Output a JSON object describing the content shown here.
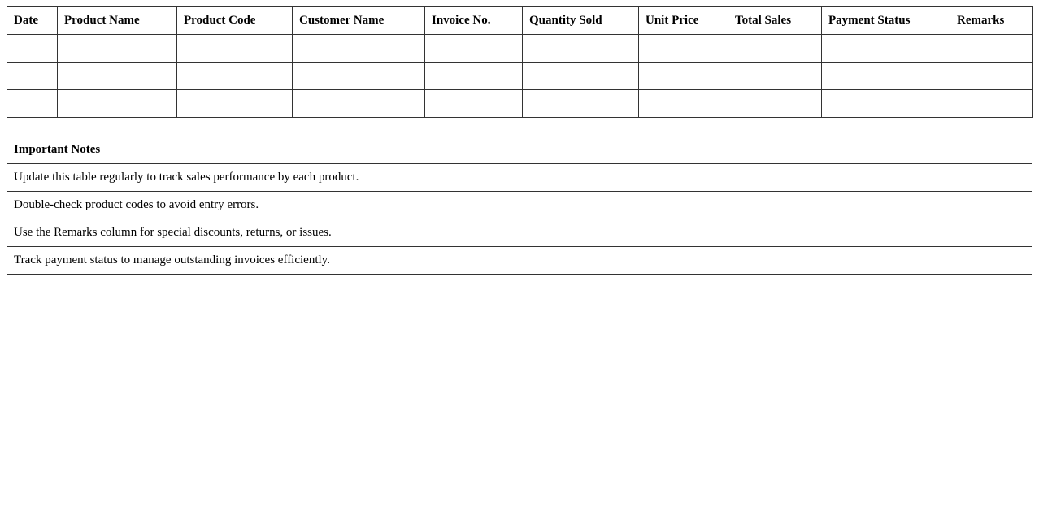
{
  "sales_table": {
    "headers": [
      "Date",
      "Product Name",
      "Product Code",
      "Customer Name",
      "Invoice No.",
      "Quantity Sold",
      "Unit Price",
      "Total Sales",
      "Payment Status",
      "Remarks"
    ],
    "rows": [
      [
        "",
        "",
        "",
        "",
        "",
        "",
        "",
        "",
        "",
        ""
      ],
      [
        "",
        "",
        "",
        "",
        "",
        "",
        "",
        "",
        "",
        ""
      ],
      [
        "",
        "",
        "",
        "",
        "",
        "",
        "",
        "",
        "",
        ""
      ]
    ]
  },
  "notes": {
    "title": "Important Notes",
    "items": [
      "Update this table regularly to track sales performance by each product.",
      "Double-check product codes to avoid entry errors.",
      "Use the Remarks column for special discounts, returns, or issues.",
      "Track payment status to manage outstanding invoices efficiently."
    ]
  }
}
